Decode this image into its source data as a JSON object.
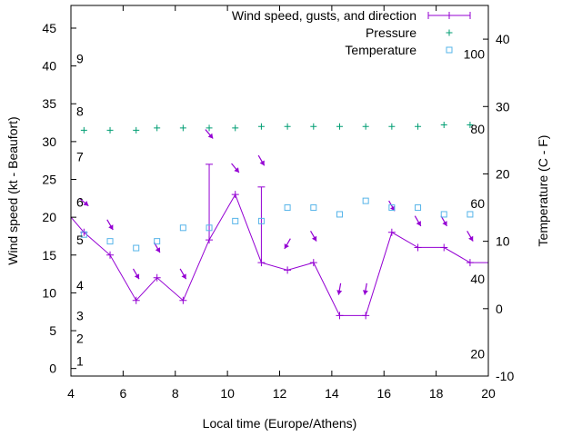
{
  "chart_data": {
    "type": "line",
    "xlabel": "Local time (Europe/Athens)",
    "ylabel": "Wind speed (kt - Beaufort)",
    "y2label": "Temperature (C - F)",
    "xlim": [
      4,
      20
    ],
    "ylim": [
      -1,
      48
    ],
    "y2lim": [
      -10,
      45
    ],
    "x_ticks": [
      4,
      6,
      8,
      10,
      12,
      14,
      16,
      18,
      20
    ],
    "y_ticks": [
      0,
      5,
      10,
      15,
      20,
      25,
      30,
      35,
      40,
      45
    ],
    "y2_ticks": [
      -10,
      0,
      10,
      20,
      30,
      40
    ],
    "beaufort_labels": [
      {
        "label": "1",
        "kt": 1
      },
      {
        "label": "2",
        "kt": 4
      },
      {
        "label": "3",
        "kt": 7
      },
      {
        "label": "4",
        "kt": 11
      },
      {
        "label": "5",
        "kt": 17
      },
      {
        "label": "6",
        "kt": 22
      },
      {
        "label": "7",
        "kt": 28
      },
      {
        "label": "8",
        "kt": 34
      },
      {
        "label": "9",
        "kt": 41
      }
    ],
    "fahrenheit_labels": [
      {
        "label": "20",
        "c": -6.7
      },
      {
        "label": "40",
        "c": 4.4
      },
      {
        "label": "60",
        "c": 15.6
      },
      {
        "label": "80",
        "c": 26.7
      },
      {
        "label": "100",
        "c": 37.8
      }
    ],
    "legend": {
      "position": "top-right",
      "wind": "Wind speed, gusts, and direction",
      "pressure": "Pressure",
      "temperature": "Temperature"
    },
    "series": [
      {
        "name": "Wind speed, gusts, and direction",
        "x": [
          4,
          4.5,
          5.5,
          6.5,
          7.3,
          8.3,
          9.3,
          10.3,
          11.3,
          12.3,
          13.3,
          14.3,
          15.3,
          16.3,
          17.3,
          18.3,
          19.3,
          20
        ],
        "values": [
          20,
          18,
          15,
          9,
          12,
          9,
          17,
          23,
          14,
          13,
          14,
          7,
          7,
          18,
          16,
          16,
          14,
          14
        ],
        "gusts": [
          {
            "x": 9.3,
            "value": 27
          },
          {
            "x": 11.3,
            "value": 24
          }
        ],
        "directions": [
          {
            "x": 4.5,
            "kt": 22,
            "angle": 130
          },
          {
            "x": 5.5,
            "kt": 19,
            "angle": 150
          },
          {
            "x": 6.5,
            "kt": 12.5,
            "angle": 150
          },
          {
            "x": 7.3,
            "kt": 16,
            "angle": 150
          },
          {
            "x": 8.3,
            "kt": 12.5,
            "angle": 150
          },
          {
            "x": 9.3,
            "kt": 31,
            "angle": 140
          },
          {
            "x": 10.3,
            "kt": 26.5,
            "angle": 140
          },
          {
            "x": 11.3,
            "kt": 27.5,
            "angle": 150
          },
          {
            "x": 12.3,
            "kt": 16.5,
            "angle": 210
          },
          {
            "x": 13.3,
            "kt": 17.5,
            "angle": 150
          },
          {
            "x": 14.3,
            "kt": 10.5,
            "angle": 190
          },
          {
            "x": 15.3,
            "kt": 10.5,
            "angle": 190
          },
          {
            "x": 16.3,
            "kt": 21.5,
            "angle": 150
          },
          {
            "x": 17.3,
            "kt": 19.5,
            "angle": 150
          },
          {
            "x": 18.3,
            "kt": 19.5,
            "angle": 150
          },
          {
            "x": 19.3,
            "kt": 17.5,
            "angle": 150
          }
        ]
      },
      {
        "name": "Pressure",
        "x": [
          4.5,
          5.5,
          6.5,
          7.3,
          8.3,
          9.3,
          10.3,
          11.3,
          12.3,
          13.3,
          14.3,
          15.3,
          16.3,
          17.3,
          18.3,
          19.3
        ],
        "values": [
          31.5,
          31.5,
          31.5,
          31.8,
          31.8,
          31.8,
          31.8,
          32,
          32,
          32,
          32,
          32,
          32,
          32,
          32.2,
          32.2
        ]
      },
      {
        "name": "Temperature",
        "x": [
          4.5,
          5.5,
          6.5,
          7.3,
          8.3,
          9.3,
          10.3,
          11.3,
          12.3,
          13.3,
          14.3,
          15.3,
          16.3,
          17.3,
          18.3,
          19.3
        ],
        "values": [
          11,
          10,
          9,
          10,
          12,
          12,
          13,
          13,
          15,
          15,
          14,
          16,
          15,
          15,
          14,
          14
        ]
      }
    ],
    "colors": {
      "wind": "#9400d3",
      "pressure": "#009e73",
      "temperature": "#56b4e9",
      "axis": "#000000"
    }
  }
}
